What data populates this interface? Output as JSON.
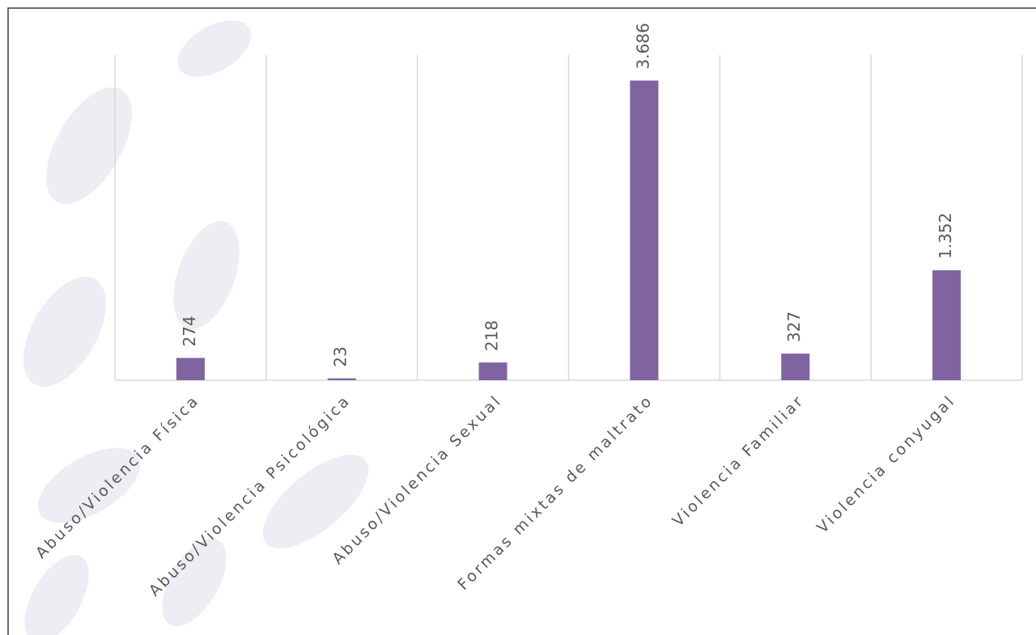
{
  "chart_data": {
    "type": "bar",
    "categories": [
      "Abuso/Violencia Física",
      "Abuso/Violencia Psicológica",
      "Abuso/Violencia Sexual",
      "Formas mixtas de maltrato",
      "Violencia Familiar",
      "Violencia conyugal"
    ],
    "values": [
      274,
      23,
      218,
      3686,
      327,
      1352
    ],
    "value_labels": [
      "274",
      "23",
      "218",
      "3.686",
      "327",
      "1.352"
    ],
    "color": "#8064a2",
    "ylim": [
      0,
      4000
    ],
    "grid": true
  }
}
